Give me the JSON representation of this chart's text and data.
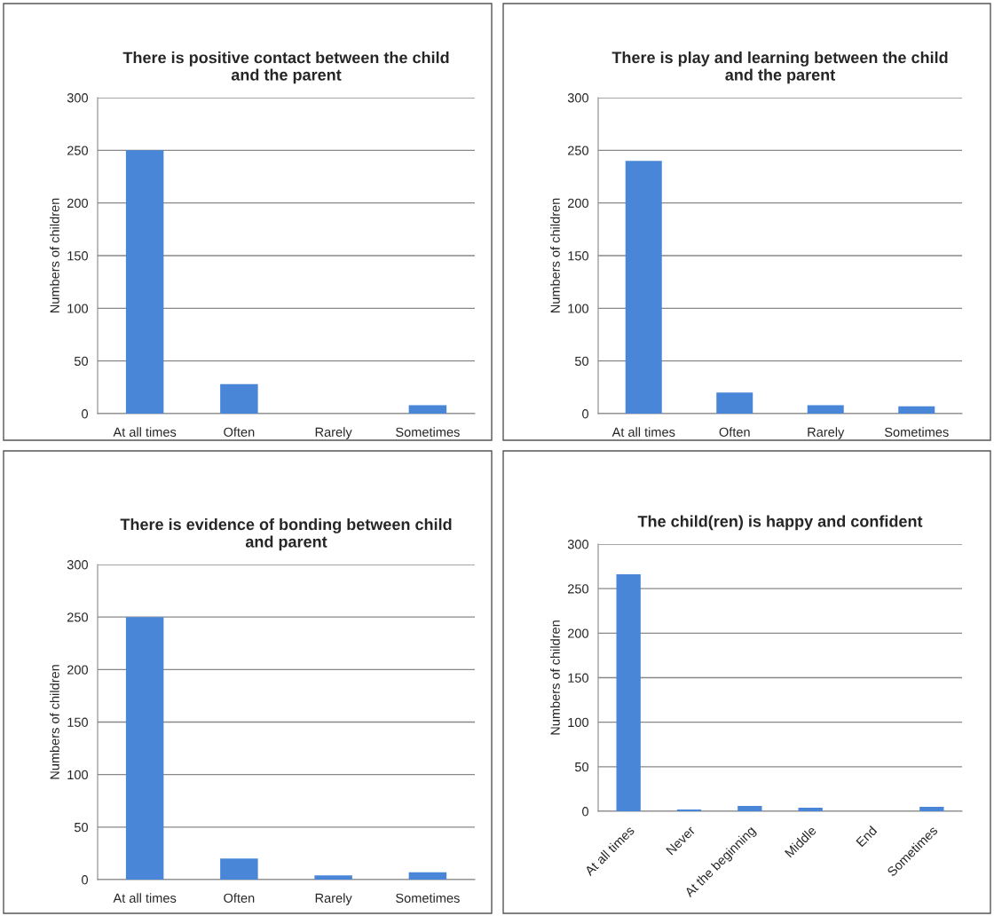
{
  "chart_data": [
    {
      "type": "bar",
      "title": "There is positive contact between the child and the parent",
      "ylabel": "Numbers of children",
      "categories": [
        "At all times",
        "Often",
        "Rarely",
        "Sometimes"
      ],
      "values": [
        250,
        28,
        0,
        8
      ],
      "color": "#4a86d8",
      "ylim": [
        0,
        300
      ],
      "yticks": [
        0,
        50,
        100,
        150,
        200,
        250,
        300
      ],
      "grid": "y",
      "legend": false
    },
    {
      "type": "bar",
      "title": "There is play and learning between the child and the parent",
      "ylabel": "Numbers of children",
      "categories": [
        "At all times",
        "Often",
        "Rarely",
        "Sometimes"
      ],
      "values": [
        240,
        20,
        8,
        7
      ],
      "color": "#4a86d8",
      "ylim": [
        0,
        300
      ],
      "yticks": [
        0,
        50,
        100,
        150,
        200,
        250,
        300
      ],
      "grid": "y",
      "legend": false
    },
    {
      "type": "bar",
      "title": "There is evidence of bonding between child and parent",
      "ylabel": "Numbers of children",
      "categories": [
        "At all times",
        "Often",
        "Rarely",
        "Sometimes"
      ],
      "values": [
        250,
        20,
        4,
        7
      ],
      "color": "#4a86d8",
      "ylim": [
        0,
        300
      ],
      "yticks": [
        0,
        50,
        100,
        150,
        200,
        250,
        300
      ],
      "grid": "y",
      "legend": false
    },
    {
      "type": "bar",
      "title": "The child(ren) is happy and confident",
      "ylabel": "Numbers of children",
      "categories": [
        "At all times",
        "Never",
        "At the beginning",
        "Middle",
        "End",
        "Sometimes"
      ],
      "values": [
        266,
        2,
        6,
        4,
        0,
        5
      ],
      "color": "#4a86d8",
      "ylim": [
        0,
        300
      ],
      "yticks": [
        0,
        50,
        100,
        150,
        200,
        250,
        300
      ],
      "grid": "y",
      "legend": false
    }
  ]
}
